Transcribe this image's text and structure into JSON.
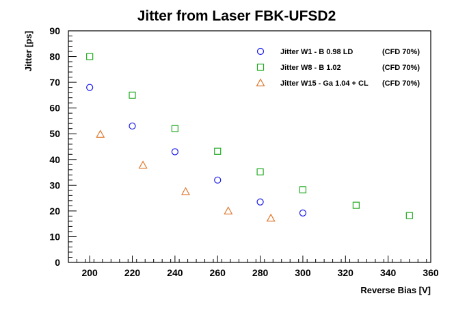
{
  "chart_data": {
    "type": "scatter",
    "title": "Jitter from Laser  FBK-UFSD2",
    "xlabel": "Reverse Bias [V]",
    "ylabel": "Jitter [ps]",
    "xlim": [
      190,
      360
    ],
    "ylim": [
      0,
      90
    ],
    "xticks": [
      200,
      220,
      240,
      260,
      280,
      300,
      320,
      340,
      360
    ],
    "yticks": [
      0,
      10,
      20,
      30,
      40,
      50,
      60,
      70,
      80,
      90
    ],
    "grid": false,
    "legend_position": "top-right",
    "series": [
      {
        "name": "Jitter W1 - B 0.98 LD",
        "note": "(CFD 70%)",
        "marker": "circle",
        "color": "#1a1aee",
        "x": [
          200,
          220,
          240,
          260,
          280,
          300
        ],
        "y": [
          68,
          53,
          43,
          32,
          23.5,
          19.2
        ]
      },
      {
        "name": "Jitter W8 - B 1.02",
        "note": "(CFD 70%)",
        "marker": "square",
        "color": "#22aa22",
        "x": [
          200,
          220,
          240,
          260,
          280,
          300,
          325,
          350
        ],
        "y": [
          80,
          65,
          52,
          43.2,
          35.2,
          28.2,
          22.2,
          18.2
        ]
      },
      {
        "name": "Jitter W15 - Ga 1.04 + CL",
        "note": "(CFD 70%)",
        "marker": "triangle",
        "color": "#e07a30",
        "x": [
          205,
          225,
          245,
          265,
          285
        ],
        "y": [
          49.8,
          37.8,
          27.5,
          20,
          17.2
        ]
      }
    ]
  }
}
